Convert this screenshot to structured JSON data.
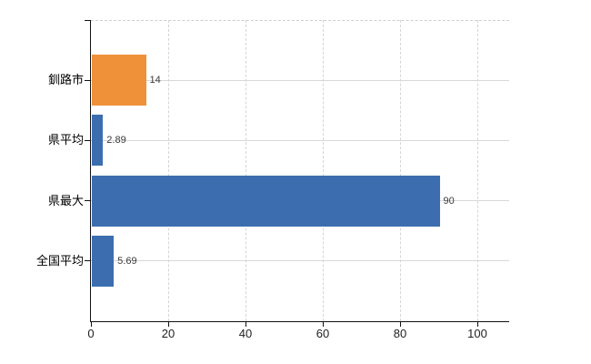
{
  "chart_data": {
    "type": "bar",
    "orientation": "horizontal",
    "title": "",
    "categories": [
      "釧路市",
      "県平均",
      "県最大",
      "全国平均"
    ],
    "values": [
      14,
      2.89,
      90,
      5.69
    ],
    "value_labels": [
      "14",
      "2.89",
      "90",
      "5.69"
    ],
    "series": [
      {
        "name": "values",
        "values": [
          14,
          2.89,
          90,
          5.69
        ],
        "colors": [
          "#EE9138",
          "#3C6EAF",
          "#3C6EAF",
          "#3C6EAF"
        ]
      }
    ],
    "x_ticks": [
      0,
      20,
      40,
      60,
      80,
      100
    ],
    "x_tick_labels": [
      "0",
      "20",
      "40",
      "60",
      "80",
      "100"
    ],
    "xlim": [
      0,
      108
    ],
    "grid": true,
    "gridline_color": "#d6dad6",
    "axis_color": "#111111",
    "background_color": "#ffffff",
    "bar_colors": {
      "highlight_orange": "#EE9138",
      "default_blue": "#3C6EAF"
    }
  }
}
